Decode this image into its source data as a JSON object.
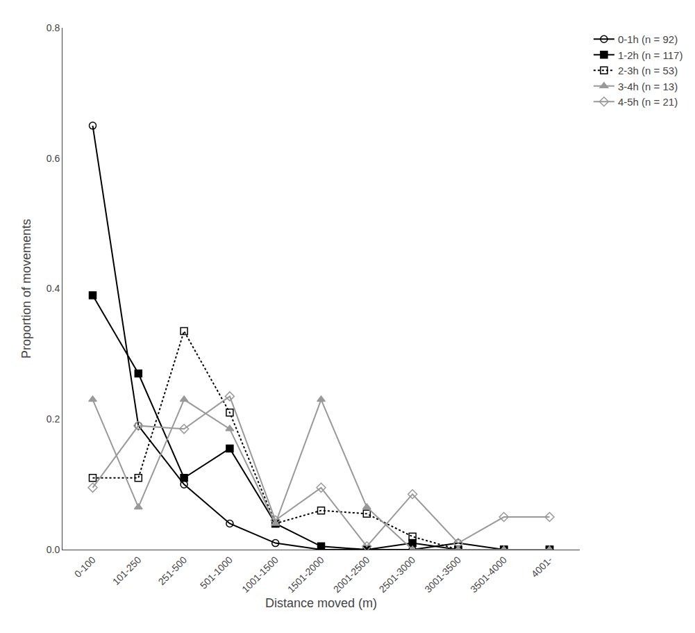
{
  "chart_data": {
    "type": "line",
    "categories": [
      "0-100",
      "101-250",
      "251-500",
      "501-1000",
      "1001-1500",
      "1501-2000",
      "2001-2500",
      "2501-3000",
      "3001-3500",
      "3501-4000",
      "4001-"
    ],
    "series": [
      {
        "name": "0-1h (n = 92)",
        "color": "#000000",
        "marker": "circle-open",
        "line_style": "solid",
        "values": [
          0.65,
          0.19,
          0.1,
          0.04,
          0.01,
          0.0,
          0.0,
          0.0,
          0.01,
          0.0,
          0.0
        ]
      },
      {
        "name": "1-2h (n = 117)",
        "color": "#000000",
        "marker": "square",
        "line_style": "solid",
        "values": [
          0.39,
          0.27,
          0.11,
          0.155,
          0.04,
          0.005,
          0.0,
          0.01,
          0.0,
          0.0,
          0.0
        ]
      },
      {
        "name": "2-3h (n = 53)",
        "color": "#000000",
        "marker": "square-open",
        "line_style": "dot",
        "values": [
          0.11,
          0.11,
          0.335,
          0.21,
          0.04,
          0.06,
          0.055,
          0.02,
          0.0,
          0.0,
          0.0
        ]
      },
      {
        "name": "3-4h (n = 13)",
        "color": "#999999",
        "marker": "triangle-up",
        "line_style": "solid",
        "values": [
          0.23,
          0.065,
          0.23,
          0.185,
          0.04,
          0.23,
          0.065,
          0.0,
          0.0,
          0.0,
          0.0
        ]
      },
      {
        "name": "4-5h (n = 21)",
        "color": "#999999",
        "marker": "diamond-open",
        "line_style": "solid",
        "values": [
          0.095,
          0.19,
          0.185,
          0.235,
          0.045,
          0.095,
          0.005,
          0.085,
          0.01,
          0.05,
          0.05
        ]
      }
    ],
    "xlabel": "Distance moved (m)",
    "ylabel": "Proportion of movements",
    "ylim": [
      0.0,
      0.8
    ],
    "yticks": [
      {
        "value": 0,
        "label": "0.0"
      },
      0.2,
      0.4,
      0.6,
      0.8
    ],
    "grid": false,
    "legend": "right"
  }
}
